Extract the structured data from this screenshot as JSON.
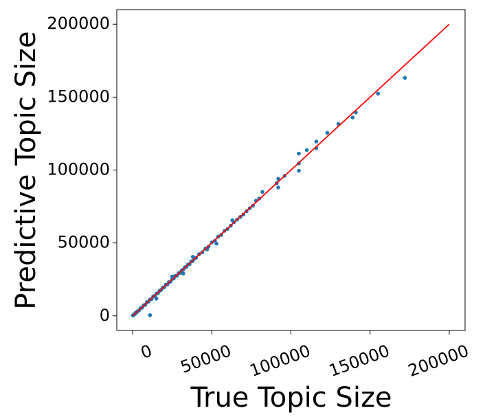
{
  "chart_data": {
    "type": "scatter",
    "x_label": "True Topic Size",
    "y_label": "Predictive Topic Size",
    "xlim": [
      -10000,
      210000
    ],
    "ylim": [
      -10000,
      210000
    ],
    "xticks": [
      0,
      50000,
      100000,
      150000,
      200000
    ],
    "yticks": [
      0,
      50000,
      100000,
      150000,
      200000
    ],
    "points": {
      "color": "#1f77b4",
      "x": [
        200,
        500,
        1000,
        1500,
        2000,
        2500,
        3000,
        4000,
        5000,
        6000,
        7000,
        8000,
        9000,
        10000,
        11000,
        12000,
        13000,
        14000,
        15000,
        16000,
        17000,
        18000,
        19000,
        20000,
        21000,
        22000,
        23000,
        24000,
        25000,
        26000,
        27000,
        28000,
        29000,
        30000,
        31000,
        32000,
        33000,
        34000,
        35000,
        36000,
        37000,
        38000,
        39000,
        40000,
        42000,
        44000,
        46000,
        48000,
        50000,
        52000,
        54000,
        56000,
        58000,
        60000,
        62000,
        63000,
        64000,
        66000,
        68000,
        70000,
        72000,
        74000,
        76000,
        78000,
        80000,
        82000,
        11000,
        15000,
        92000,
        92000,
        91000,
        96000,
        105000,
        105000,
        105000,
        110000,
        116000,
        116000,
        123000,
        130000,
        139000,
        141000,
        155000,
        172000,
        25000,
        32000,
        38000,
        47000,
        53000
      ],
      "y": [
        300,
        400,
        1200,
        1300,
        2200,
        2300,
        3100,
        3700,
        5300,
        5600,
        7300,
        7600,
        9400,
        9700,
        11200,
        11500,
        13400,
        13600,
        15300,
        15500,
        17200,
        17800,
        19300,
        19600,
        21400,
        21500,
        23200,
        23500,
        25300,
        25600,
        27400,
        27500,
        29300,
        29500,
        31200,
        31700,
        33300,
        33600,
        35200,
        35500,
        37400,
        37600,
        39300,
        39800,
        42300,
        43600,
        46200,
        47500,
        50400,
        51500,
        54300,
        55500,
        58300,
        59600,
        61800,
        65500,
        64200,
        66000,
        67800,
        69500,
        71800,
        73800,
        75500,
        79000,
        80500,
        85000,
        500,
        11800,
        88000,
        94000,
        91000,
        96000,
        111300,
        99500,
        104500,
        113700,
        119500,
        115000,
        125500,
        131600,
        136000,
        139500,
        152400,
        163200,
        27000,
        29000,
        40500,
        45500,
        49500
      ]
    },
    "reference_line": {
      "color": "red",
      "x": [
        0,
        200000
      ],
      "y": [
        0,
        200000
      ]
    }
  }
}
